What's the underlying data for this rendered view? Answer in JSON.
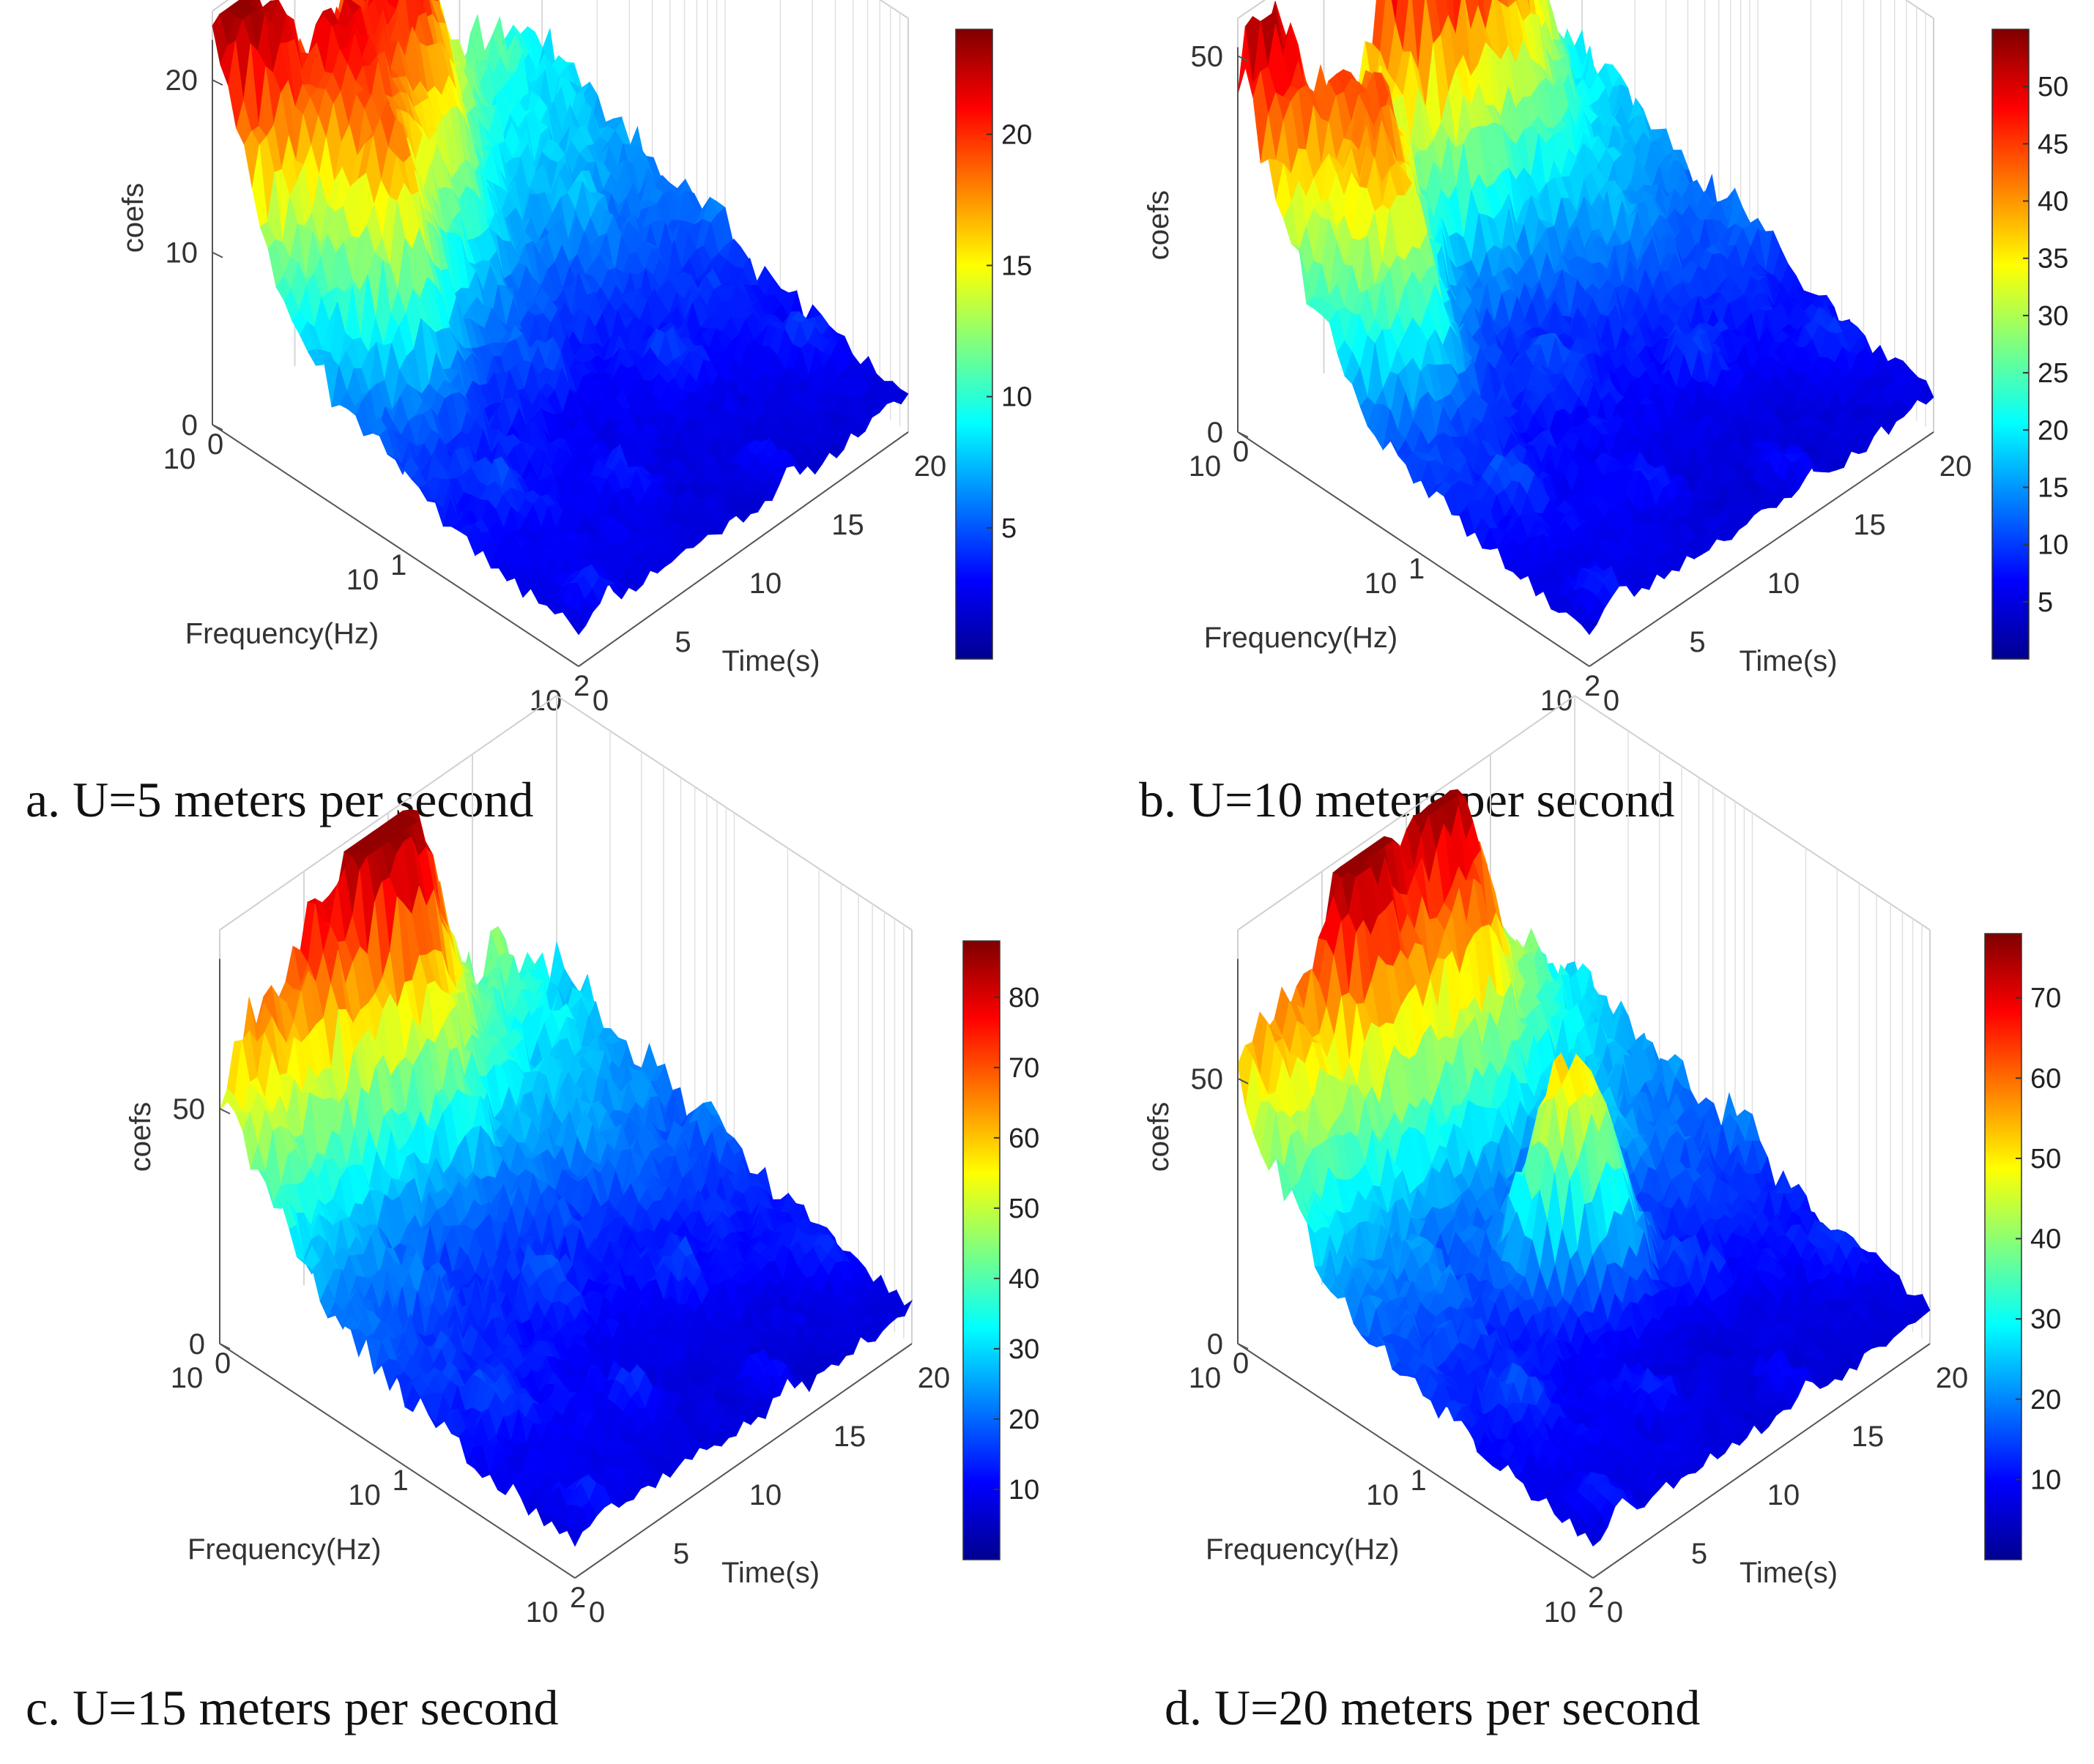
{
  "colors": {
    "jet": [
      "#00008f",
      "#0000ff",
      "#007fff",
      "#00ffff",
      "#7fff7f",
      "#ffff00",
      "#ff7f00",
      "#ff0000",
      "#7f0000"
    ],
    "grid": "#d0d0d0",
    "axis": "#555555",
    "caption": "#111111"
  },
  "chart_data": [
    {
      "type": "surface",
      "caption": "a. U=5 meters per second",
      "zlabel": "coefs",
      "xlabel": "Frequency(Hz)",
      "ylabel": "Time(s)",
      "x_scale": "log",
      "xlim": [
        1,
        100
      ],
      "xticks": [
        "10",
        "10",
        "10"
      ],
      "xtick_exp": [
        "0",
        "1",
        "2"
      ],
      "ylim": [
        0,
        20
      ],
      "yticks": [
        "0",
        "5",
        "10",
        "15",
        "20"
      ],
      "zlim": [
        0,
        24
      ],
      "zticks": [
        "0",
        "10",
        "20"
      ],
      "colorbar": {
        "range": [
          0,
          24
        ],
        "ticks": [
          "5",
          "10",
          "15",
          "20"
        ]
      },
      "peaks": [
        {
          "freq_hz": 1.0,
          "time_s": 1.5,
          "coef": 22,
          "width": 0.1
        },
        {
          "freq_hz": 1.0,
          "time_s": 10,
          "coef": 23,
          "width": 0.1
        },
        {
          "freq_hz": 2.5,
          "time_s": 8,
          "coef": 12,
          "width": 0.1
        },
        {
          "freq_hz": 1.8,
          "time_s": 5,
          "coef": 14,
          "width": 0.08
        },
        {
          "freq_hz": 4.0,
          "time_s": 4,
          "coef": 14,
          "width": 0.08
        }
      ]
    },
    {
      "type": "surface",
      "caption": "b. U=10 meters per second",
      "zlabel": "coefs",
      "xlabel": "Frequency(Hz)",
      "ylabel": "Time(s)",
      "x_scale": "log",
      "xlim": [
        1,
        100
      ],
      "xticks": [
        "10",
        "10",
        "10"
      ],
      "xtick_exp": [
        "0",
        "1",
        "2"
      ],
      "ylim": [
        0,
        20
      ],
      "yticks": [
        "0",
        "5",
        "10",
        "15",
        "20"
      ],
      "zlim": [
        0,
        55
      ],
      "zticks": [
        "0",
        "50"
      ],
      "colorbar": {
        "range": [
          0,
          55
        ],
        "ticks": [
          "5",
          "10",
          "15",
          "20",
          "25",
          "30",
          "35",
          "40",
          "45",
          "50"
        ]
      },
      "peaks": [
        {
          "freq_hz": 1.0,
          "time_s": 1.5,
          "coef": 45,
          "width": 0.1
        },
        {
          "freq_hz": 1.0,
          "time_s": 10,
          "coef": 52,
          "width": 0.1
        },
        {
          "freq_hz": 1.0,
          "time_s": 14,
          "coef": 35,
          "width": 0.1
        },
        {
          "freq_hz": 2.0,
          "time_s": 5,
          "coef": 30,
          "width": 0.08
        },
        {
          "freq_hz": 3.5,
          "time_s": 3,
          "coef": 28,
          "width": 0.08
        }
      ]
    },
    {
      "type": "surface",
      "caption": "c. U=15 meters per second",
      "zlabel": "coefs",
      "xlabel": "Frequency(Hz)",
      "ylabel": "Time(s)",
      "x_scale": "log",
      "xlim": [
        1,
        100
      ],
      "xticks": [
        "10",
        "10",
        "10"
      ],
      "xtick_exp": [
        "0",
        "1",
        "2"
      ],
      "ylim": [
        0,
        20
      ],
      "yticks": [
        "0",
        "5",
        "10",
        "15",
        "20"
      ],
      "zlim": [
        0,
        88
      ],
      "zticks": [
        "0",
        "50"
      ],
      "colorbar": {
        "range": [
          0,
          88
        ],
        "ticks": [
          "10",
          "20",
          "30",
          "40",
          "50",
          "60",
          "70",
          "80"
        ]
      },
      "peaks": [
        {
          "freq_hz": 1.0,
          "time_s": 10,
          "coef": 85,
          "width": 0.1
        },
        {
          "freq_hz": 1.0,
          "time_s": 6,
          "coef": 48,
          "width": 0.1
        },
        {
          "freq_hz": 1.0,
          "time_s": 2,
          "coef": 40,
          "width": 0.1
        }
      ]
    },
    {
      "type": "surface",
      "caption": "d. U=20 meters per second",
      "zlabel": "coefs",
      "xlabel": "Frequency(Hz)",
      "ylabel": "Time(s)",
      "x_scale": "log",
      "xlim": [
        1,
        100
      ],
      "xticks": [
        "10",
        "10",
        "10"
      ],
      "xtick_exp": [
        "0",
        "1",
        "2"
      ],
      "ylim": [
        0,
        20
      ],
      "yticks": [
        "0",
        "5",
        "10",
        "15",
        "20"
      ],
      "zlim": [
        0,
        78
      ],
      "zticks": [
        "0",
        "50"
      ],
      "colorbar": {
        "range": [
          0,
          78
        ],
        "ticks": [
          "10",
          "20",
          "30",
          "40",
          "50",
          "60",
          "70"
        ]
      },
      "peaks": [
        {
          "freq_hz": 1.0,
          "time_s": 7,
          "coef": 70,
          "width": 0.1
        },
        {
          "freq_hz": 1.0,
          "time_s": 12,
          "coef": 60,
          "width": 0.1
        },
        {
          "freq_hz": 1.0,
          "time_s": 2,
          "coef": 40,
          "width": 0.1
        },
        {
          "freq_hz": 8.0,
          "time_s": 9,
          "coef": 40,
          "width": 0.06
        },
        {
          "freq_hz": 10.0,
          "time_s": 11,
          "coef": 38,
          "width": 0.06
        }
      ]
    }
  ]
}
